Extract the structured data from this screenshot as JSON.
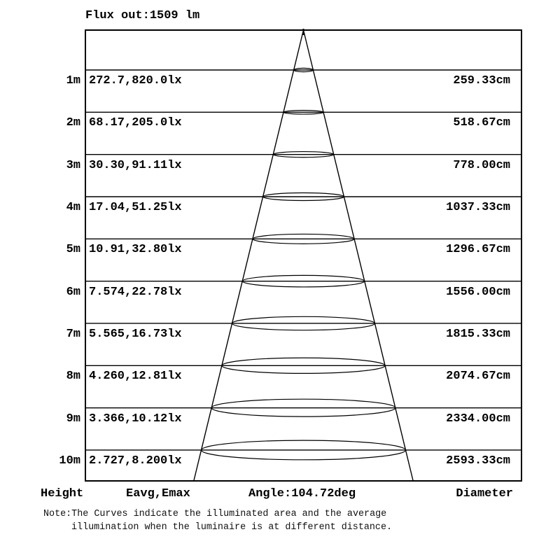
{
  "title": "Flux out:1509 lm",
  "columns": {
    "height": "Height",
    "eavg_emax": "Eavg,Emax",
    "angle": "Angle:104.72deg",
    "diameter": "Diameter"
  },
  "rows": [
    {
      "height": "1m",
      "eavg_emax": "272.7,820.0lx",
      "diameter": "259.33cm"
    },
    {
      "height": "2m",
      "eavg_emax": "68.17,205.0lx",
      "diameter": "518.67cm"
    },
    {
      "height": "3m",
      "eavg_emax": "30.30,91.11lx",
      "diameter": "778.00cm"
    },
    {
      "height": "4m",
      "eavg_emax": "17.04,51.25lx",
      "diameter": "1037.33cm"
    },
    {
      "height": "5m",
      "eavg_emax": "10.91,32.80lx",
      "diameter": "1296.67cm"
    },
    {
      "height": "6m",
      "eavg_emax": "7.574,22.78lx",
      "diameter": "1556.00cm"
    },
    {
      "height": "7m",
      "eavg_emax": "5.565,16.73lx",
      "diameter": "1815.33cm"
    },
    {
      "height": "8m",
      "eavg_emax": "4.260,12.81lx",
      "diameter": "2074.67cm"
    },
    {
      "height": "9m",
      "eavg_emax": "3.366,10.12lx",
      "diameter": "2334.00cm"
    },
    {
      "height": "10m",
      "eavg_emax": "2.727,8.200lx",
      "diameter": "2593.33cm"
    }
  ],
  "note": {
    "line1": "Note:The Curves indicate the illuminated area and the average",
    "line2": "illumination when the luminaire is at different distance."
  },
  "chart_data": {
    "type": "table",
    "title": "Flux out:1509 lm",
    "subtitle": "Luminaire illuminance cone diagram",
    "flux_out_lm": 1509,
    "beam_angle_deg": 104.72,
    "columns": [
      "Height",
      "Eavg,Emax",
      "Diameter"
    ],
    "units": {
      "height": "m",
      "eavg": "lx",
      "emax": "lx",
      "diameter": "cm"
    },
    "heights_m": [
      1,
      2,
      3,
      4,
      5,
      6,
      7,
      8,
      9,
      10
    ],
    "series": [
      {
        "name": "Eavg_lx",
        "values": [
          272.7,
          68.17,
          30.3,
          17.04,
          10.91,
          7.574,
          5.565,
          4.26,
          3.366,
          2.727
        ]
      },
      {
        "name": "Emax_lx",
        "values": [
          820.0,
          205.0,
          91.11,
          51.25,
          32.8,
          22.78,
          16.73,
          12.81,
          10.12,
          8.2
        ]
      },
      {
        "name": "Diameter_cm",
        "values": [
          259.33,
          518.67,
          778.0,
          1037.33,
          1296.67,
          1556.0,
          1815.33,
          2074.67,
          2334.0,
          2593.33
        ]
      }
    ],
    "annotations": [
      "Note:The Curves indicate the illuminated area and the average illumination when the luminaire is at different distance."
    ],
    "legend_position": "none",
    "grid": "horizontal-lines",
    "colors": {
      "foreground": "#000000",
      "background": "#ffffff"
    }
  }
}
